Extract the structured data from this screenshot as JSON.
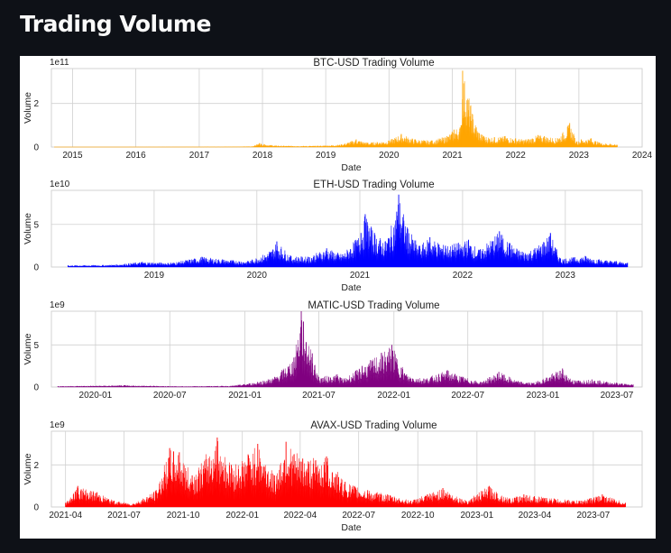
{
  "page": {
    "title": "Trading Volume"
  },
  "chart_data": [
    {
      "type": "area",
      "title": "BTC-USD Trading Volume",
      "xlabel": "Date",
      "ylabel": "Volume",
      "exponent": "1e11",
      "color": "#ffa500",
      "xlim": [
        "2014-09-01",
        "2024-01-01"
      ],
      "ylim": [
        0,
        3.6
      ],
      "yticks": [
        0,
        2
      ],
      "xticks": [
        {
          "label": "2015",
          "date": "2015-01-01"
        },
        {
          "label": "2016",
          "date": "2016-01-01"
        },
        {
          "label": "2017",
          "date": "2017-01-01"
        },
        {
          "label": "2018",
          "date": "2018-01-01"
        },
        {
          "label": "2019",
          "date": "2019-01-01"
        },
        {
          "label": "2020",
          "date": "2020-01-01"
        },
        {
          "label": "2021",
          "date": "2021-01-01"
        },
        {
          "label": "2022",
          "date": "2022-01-01"
        },
        {
          "label": "2023",
          "date": "2023-01-01"
        },
        {
          "label": "2024",
          "date": "2024-01-01"
        }
      ],
      "series": [
        {
          "x": [
            "2014-09-17",
            "2015-06-01",
            "2016-06-01",
            "2017-06-01",
            "2017-11-01",
            "2017-12-15",
            "2018-01-15",
            "2018-04-01",
            "2018-10-01",
            "2019-01-01",
            "2019-04-01",
            "2019-06-26",
            "2019-09-01",
            "2020-01-01",
            "2020-03-12",
            "2020-06-01",
            "2020-09-01",
            "2020-12-01",
            "2021-01-10",
            "2021-02-20",
            "2021-03-01",
            "2021-05-19",
            "2021-07-01",
            "2021-09-01",
            "2021-11-01",
            "2022-01-01",
            "2022-03-01",
            "2022-05-10",
            "2022-06-15",
            "2022-09-01",
            "2022-11-09",
            "2022-12-20",
            "2023-01-15",
            "2023-03-13",
            "2023-05-01",
            "2023-07-01",
            "2023-08-10"
          ],
          "y": [
            0.0005,
            0.0015,
            0.003,
            0.01,
            0.03,
            0.18,
            0.12,
            0.06,
            0.05,
            0.07,
            0.12,
            0.35,
            0.2,
            0.3,
            0.6,
            0.35,
            0.3,
            0.5,
            0.8,
            1.0,
            3.5,
            0.9,
            0.5,
            0.45,
            0.5,
            0.4,
            0.35,
            0.55,
            0.5,
            0.4,
            1.1,
            0.25,
            0.35,
            0.4,
            0.2,
            0.15,
            0.1
          ]
        }
      ]
    },
    {
      "type": "area",
      "title": "ETH-USD Trading Volume",
      "xlabel": "Date",
      "ylabel": "Volume",
      "exponent": "1e10",
      "color": "#0000ff",
      "xlim": [
        "2018-01-01",
        "2023-10-01"
      ],
      "ylim": [
        0,
        9
      ],
      "yticks": [
        0,
        5
      ],
      "xticks": [
        {
          "label": "2019",
          "date": "2019-01-01"
        },
        {
          "label": "2020",
          "date": "2020-01-01"
        },
        {
          "label": "2021",
          "date": "2021-01-01"
        },
        {
          "label": "2022",
          "date": "2022-01-01"
        },
        {
          "label": "2023",
          "date": "2023-01-01"
        }
      ],
      "series": [
        {
          "x": [
            "2018-03-01",
            "2018-08-01",
            "2018-11-20",
            "2019-03-01",
            "2019-06-20",
            "2019-09-01",
            "2019-12-01",
            "2020-02-15",
            "2020-03-12",
            "2020-05-01",
            "2020-07-01",
            "2020-09-05",
            "2020-11-01",
            "2021-01-05",
            "2021-01-20",
            "2021-02-22",
            "2021-04-01",
            "2021-05-12",
            "2021-05-19",
            "2021-06-20",
            "2021-08-01",
            "2021-09-07",
            "2021-11-01",
            "2022-01-22",
            "2022-03-01",
            "2022-05-12",
            "2022-06-18",
            "2022-08-01",
            "2022-09-15",
            "2022-11-09",
            "2022-12-15",
            "2023-03-13",
            "2023-05-01",
            "2023-07-01",
            "2023-08-10"
          ],
          "y": [
            0.2,
            0.25,
            0.6,
            0.5,
            1.2,
            0.9,
            0.7,
            1.8,
            3.0,
            1.3,
            1.2,
            2.2,
            1.5,
            4.0,
            6.2,
            4.0,
            3.0,
            6.5,
            8.5,
            4.5,
            2.5,
            3.5,
            2.5,
            3.2,
            2.0,
            4.2,
            2.8,
            1.8,
            2.2,
            4.0,
            1.0,
            1.3,
            0.9,
            0.7,
            0.5
          ]
        }
      ]
    },
    {
      "type": "area",
      "title": "MATIC-USD Trading Volume",
      "xlabel": "",
      "ylabel": "Volume",
      "exponent": "1e9",
      "color": "#800080",
      "xlim": [
        "2019-09-15",
        "2023-09-01"
      ],
      "ylim": [
        0,
        9
      ],
      "yticks": [
        0,
        5
      ],
      "xticks": [
        {
          "label": "2020-01",
          "date": "2020-01-01"
        },
        {
          "label": "2020-07",
          "date": "2020-07-01"
        },
        {
          "label": "2021-01",
          "date": "2021-01-01"
        },
        {
          "label": "2021-07",
          "date": "2021-07-01"
        },
        {
          "label": "2022-01",
          "date": "2022-01-01"
        },
        {
          "label": "2022-07",
          "date": "2022-07-01"
        },
        {
          "label": "2023-01",
          "date": "2023-01-01"
        },
        {
          "label": "2023-07",
          "date": "2023-07-01"
        }
      ],
      "series": [
        {
          "x": [
            "2019-10-01",
            "2020-03-12",
            "2020-08-01",
            "2020-12-01",
            "2021-02-01",
            "2021-03-15",
            "2021-05-01",
            "2021-05-19",
            "2021-06-15",
            "2021-07-01",
            "2021-08-15",
            "2021-09-01",
            "2021-10-15",
            "2021-12-27",
            "2022-02-01",
            "2022-03-15",
            "2022-05-12",
            "2022-06-20",
            "2022-08-01",
            "2022-09-15",
            "2022-11-01",
            "2022-12-10",
            "2023-02-18",
            "2023-03-15",
            "2023-05-01",
            "2023-07-01",
            "2023-08-10"
          ],
          "y": [
            0.1,
            0.2,
            0.08,
            0.15,
            0.6,
            1.2,
            3.5,
            9.0,
            4.0,
            1.2,
            1.5,
            1.0,
            2.5,
            5.0,
            1.5,
            1.0,
            2.0,
            1.2,
            0.6,
            1.8,
            0.7,
            0.5,
            2.2,
            0.8,
            0.9,
            0.5,
            0.3
          ]
        }
      ]
    },
    {
      "type": "area",
      "title": "AVAX-USD Trading Volume",
      "xlabel": "Date",
      "ylabel": "Volume",
      "exponent": "1e9",
      "color": "#ff0000",
      "xlim": [
        "2021-03-10",
        "2023-09-15"
      ],
      "ylim": [
        0,
        3.6
      ],
      "yticks": [
        0,
        2
      ],
      "xticks": [
        {
          "label": "2021-04",
          "date": "2021-04-01"
        },
        {
          "label": "2021-07",
          "date": "2021-07-01"
        },
        {
          "label": "2021-10",
          "date": "2021-10-01"
        },
        {
          "label": "2022-01",
          "date": "2022-01-01"
        },
        {
          "label": "2022-04",
          "date": "2022-04-01"
        },
        {
          "label": "2022-07",
          "date": "2022-07-01"
        },
        {
          "label": "2022-10",
          "date": "2022-10-01"
        },
        {
          "label": "2023-01",
          "date": "2023-01-01"
        },
        {
          "label": "2023-04",
          "date": "2023-04-01"
        },
        {
          "label": "2023-07",
          "date": "2023-07-01"
        }
      ],
      "series": [
        {
          "x": [
            "2021-04-01",
            "2021-04-20",
            "2021-05-20",
            "2021-06-15",
            "2021-07-15",
            "2021-08-20",
            "2021-09-10",
            "2021-09-25",
            "2021-10-15",
            "2021-11-23",
            "2021-12-15",
            "2022-01-10",
            "2022-01-25",
            "2022-02-20",
            "2022-03-10",
            "2022-04-05",
            "2022-05-12",
            "2022-06-10",
            "2022-07-15",
            "2022-08-15",
            "2022-09-20",
            "2022-11-09",
            "2022-12-15",
            "2023-01-20",
            "2023-02-20",
            "2023-03-15",
            "2023-05-01",
            "2023-06-10",
            "2023-07-15",
            "2023-08-20"
          ],
          "y": [
            0.2,
            1.0,
            0.7,
            0.3,
            0.15,
            0.8,
            2.8,
            2.6,
            1.5,
            3.3,
            2.0,
            2.5,
            3.0,
            1.5,
            3.1,
            2.3,
            2.4,
            1.2,
            0.8,
            0.6,
            0.3,
            0.9,
            0.3,
            1.0,
            0.4,
            0.6,
            0.4,
            0.3,
            0.6,
            0.2
          ]
        }
      ]
    }
  ]
}
